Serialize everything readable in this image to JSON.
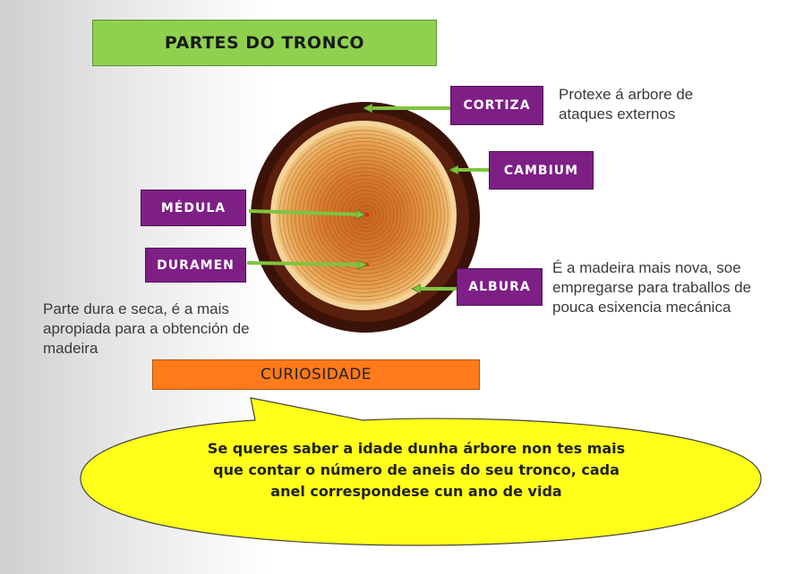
{
  "title": "PARTES DO TRONCO",
  "labels": {
    "cortiza": "CORTIZA",
    "cambium": "CAMBIUM",
    "medula": "MÉDULA",
    "duramen": "DURAMEN",
    "albura": "ALBURA"
  },
  "descriptions": {
    "cortiza": [
      "Protexe á arbore de",
      "ataques externos"
    ],
    "albura": [
      "É a madeira mais nova, soe",
      "empregarse para traballos de",
      "pouca esixencia mecánica"
    ],
    "duramen": [
      "Parte dura e seca, é a mais",
      "apropiada para a obtención de",
      "madeira"
    ]
  },
  "curiosity": {
    "heading": "CURIOSIDADE",
    "text": [
      "Se queres saber a idade dunha árbore non tes mais",
      "que contar o número de aneis do seu tronco, cada",
      "anel correspondese cun ano de vida"
    ]
  },
  "colors": {
    "title_bg": "#8fd14f",
    "tag_bg": "#7e1f86",
    "arrow": "#8fd14f",
    "curiosity_bg": "#ff7a1a",
    "bubble_bg": "#ffff1a"
  }
}
